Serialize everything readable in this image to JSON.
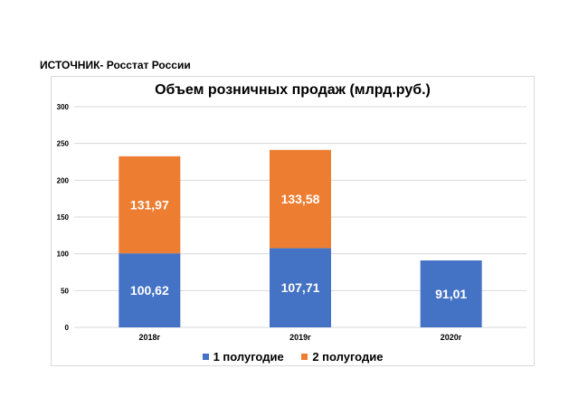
{
  "source": "ИСТОЧНИК- Росстат России",
  "colors": {
    "h1": "#4472c4",
    "h2": "#ed7d31",
    "grid": "#d9d9d9"
  },
  "chart_data": {
    "type": "bar",
    "stacked": true,
    "title": "Объем розничных продаж (млрд.руб.)",
    "categories": [
      "2018г",
      "2019г",
      "2020г"
    ],
    "series": [
      {
        "name": "1 полугодие",
        "values": [
          100.62,
          107.71,
          91.01
        ],
        "labels": [
          "100,62",
          "107,71",
          "91,01"
        ]
      },
      {
        "name": "2 полугодие",
        "values": [
          131.97,
          133.58,
          null
        ],
        "labels": [
          "131,97",
          "133,58",
          ""
        ]
      }
    ],
    "ylim": [
      0,
      300
    ],
    "yticks": [
      "0",
      "50",
      "100",
      "150",
      "200",
      "250",
      "300"
    ],
    "grid": true,
    "legend_position": "bottom"
  }
}
